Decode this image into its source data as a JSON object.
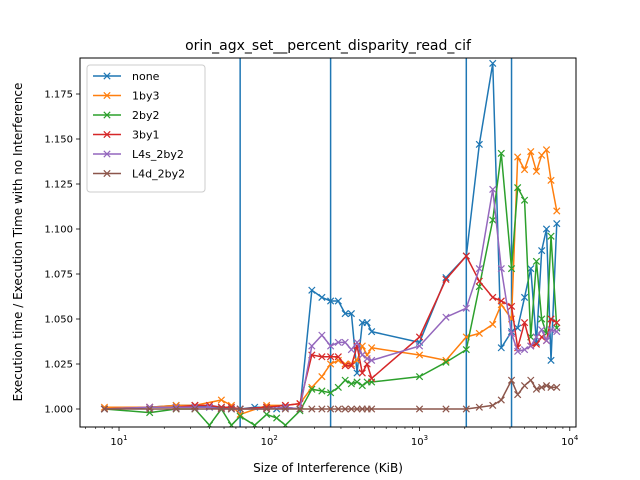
{
  "chart_data": {
    "type": "line",
    "title": "orin_agx_set__percent_disparity_read_cif",
    "xlabel": "Size of Interference (KiB)",
    "ylabel": "Execution time / Execution Time with no Interference",
    "xscale": "log",
    "xlim": [
      5.5,
      11000
    ],
    "ylim": [
      0.99,
      1.195
    ],
    "x_ticks": [
      {
        "value": 10,
        "base": "10",
        "exp": "1"
      },
      {
        "value": 100,
        "base": "10",
        "exp": "2"
      },
      {
        "value": 1000,
        "base": "10",
        "exp": "3"
      },
      {
        "value": 10000,
        "base": "10",
        "exp": "4"
      }
    ],
    "y_ticks": [
      {
        "value": 1.0,
        "label": "1.000"
      },
      {
        "value": 1.025,
        "label": "1.025"
      },
      {
        "value": 1.05,
        "label": "1.050"
      },
      {
        "value": 1.075,
        "label": "1.075"
      },
      {
        "value": 1.1,
        "label": "1.100"
      },
      {
        "value": 1.125,
        "label": "1.125"
      },
      {
        "value": 1.15,
        "label": "1.150"
      },
      {
        "value": 1.175,
        "label": "1.175"
      }
    ],
    "vlines": [
      64,
      256,
      2048,
      4096
    ],
    "vline_color": "#1f77b4",
    "grid": false,
    "legend_position": "top-left",
    "marker": "x",
    "series": [
      {
        "name": "none",
        "color": "#1f77b4",
        "x": [
          8,
          16,
          24,
          32,
          40,
          48,
          56,
          64,
          80,
          96,
          112,
          128,
          160,
          192,
          224,
          256,
          288,
          320,
          352,
          384,
          416,
          448,
          480,
          1000,
          1500,
          2048,
          2500,
          3072,
          3500,
          4096,
          4500,
          5000,
          5500,
          6000,
          6500,
          7000,
          7500,
          8192
        ],
        "y": [
          1.0,
          1.001,
          1.002,
          1.002,
          1.001,
          1.001,
          1.0,
          1.0,
          1.001,
          1.001,
          1.0,
          1.001,
          1.0,
          1.066,
          1.062,
          1.06,
          1.06,
          1.053,
          1.053,
          1.02,
          1.048,
          1.048,
          1.043,
          1.037,
          1.073,
          1.085,
          1.147,
          1.192,
          1.034,
          1.043,
          1.045,
          1.062,
          1.078,
          1.037,
          1.088,
          1.1,
          1.027,
          1.103
        ]
      },
      {
        "name": "1by3",
        "color": "#ff7f0e",
        "x": [
          8,
          16,
          24,
          32,
          48,
          56,
          64,
          96,
          128,
          160,
          192,
          224,
          256,
          288,
          320,
          352,
          384,
          416,
          448,
          480,
          1000,
          1500,
          2048,
          2500,
          3072,
          3500,
          4096,
          4500,
          5000,
          5500,
          6000,
          6500,
          7000,
          7500,
          8192
        ],
        "y": [
          1.001,
          1.001,
          1.002,
          1.002,
          1.005,
          1.002,
          0.997,
          1.002,
          1.002,
          1.003,
          1.012,
          1.018,
          1.025,
          1.027,
          1.025,
          1.025,
          1.027,
          1.035,
          1.03,
          1.034,
          1.03,
          1.027,
          1.04,
          1.042,
          1.047,
          1.058,
          1.05,
          1.14,
          1.133,
          1.143,
          1.132,
          1.141,
          1.144,
          1.127,
          1.11
        ]
      },
      {
        "name": "2by2",
        "color": "#2ca02c",
        "x": [
          8,
          16,
          24,
          32,
          40,
          48,
          56,
          64,
          80,
          96,
          112,
          128,
          160,
          192,
          224,
          256,
          288,
          320,
          352,
          384,
          416,
          448,
          480,
          1000,
          1500,
          2048,
          2500,
          3072,
          3500,
          4096,
          4500,
          5000,
          5500,
          6000,
          6500,
          7000,
          7500,
          8192
        ],
        "y": [
          1.0,
          0.998,
          1.0,
          1.0,
          0.991,
          1.0,
          0.991,
          0.996,
          0.991,
          0.997,
          0.995,
          0.991,
          0.999,
          1.011,
          1.01,
          1.009,
          1.012,
          1.016,
          1.014,
          1.015,
          1.013,
          1.015,
          1.015,
          1.018,
          1.026,
          1.033,
          1.068,
          1.105,
          1.142,
          1.078,
          1.123,
          1.116,
          1.04,
          1.082,
          1.05,
          1.042,
          1.096,
          1.045
        ]
      },
      {
        "name": "3by1",
        "color": "#d62728",
        "x": [
          8,
          16,
          24,
          32,
          40,
          48,
          56,
          64,
          96,
          128,
          160,
          192,
          224,
          256,
          288,
          320,
          352,
          384,
          416,
          448,
          480,
          1000,
          1500,
          2048,
          2500,
          3072,
          3500,
          4096,
          4500,
          5000,
          5500,
          6000,
          6500,
          7000,
          7500,
          8192
        ],
        "y": [
          1.0,
          1.001,
          1.001,
          1.002,
          1.002,
          1.001,
          1.001,
          1.0,
          1.001,
          1.002,
          1.003,
          1.03,
          1.029,
          1.029,
          1.029,
          1.024,
          1.024,
          1.035,
          1.02,
          1.025,
          1.017,
          1.04,
          1.072,
          1.085,
          1.071,
          1.062,
          1.06,
          1.057,
          1.034,
          1.048,
          1.035,
          1.036,
          1.04,
          1.038,
          1.05,
          1.048
        ]
      },
      {
        "name": "L4s_2by2",
        "color": "#9467bd",
        "x": [
          8,
          16,
          24,
          32,
          40,
          48,
          56,
          64,
          96,
          128,
          160,
          192,
          224,
          256,
          288,
          320,
          352,
          384,
          416,
          448,
          480,
          1000,
          1500,
          2048,
          2500,
          3072,
          3500,
          4096,
          4500,
          5000,
          5500,
          6000,
          6500,
          7000,
          7500,
          8192
        ],
        "y": [
          1.0,
          1.001,
          1.001,
          1.001,
          1.001,
          1.0,
          1.0,
          1.0,
          1.0,
          1.001,
          1.0,
          1.035,
          1.041,
          1.035,
          1.037,
          1.037,
          1.033,
          1.037,
          1.03,
          1.028,
          1.027,
          1.035,
          1.051,
          1.056,
          1.078,
          1.122,
          1.078,
          1.042,
          1.032,
          1.033,
          1.035,
          1.04,
          1.044,
          1.038,
          1.044,
          1.043
        ]
      },
      {
        "name": "L4d_2by2",
        "color": "#8c564b",
        "x": [
          8,
          16,
          24,
          32,
          48,
          56,
          64,
          96,
          128,
          160,
          192,
          224,
          256,
          288,
          320,
          352,
          384,
          416,
          448,
          480,
          1000,
          1500,
          2048,
          2500,
          3072,
          3500,
          4096,
          4500,
          5000,
          5500,
          6000,
          6500,
          7000,
          7500,
          8192
        ],
        "y": [
          1.0,
          1.0,
          1.0,
          1.0,
          1.0,
          1.0,
          1.0,
          1.0,
          1.0,
          1.0,
          1.0,
          1.0,
          1.0,
          1.0,
          1.0,
          1.0,
          1.0,
          1.0,
          1.0,
          1.0,
          1.0,
          1.0,
          1.0,
          1.001,
          1.002,
          1.005,
          1.016,
          1.008,
          1.013,
          1.016,
          1.011,
          1.012,
          1.013,
          1.012,
          1.012
        ]
      }
    ]
  }
}
